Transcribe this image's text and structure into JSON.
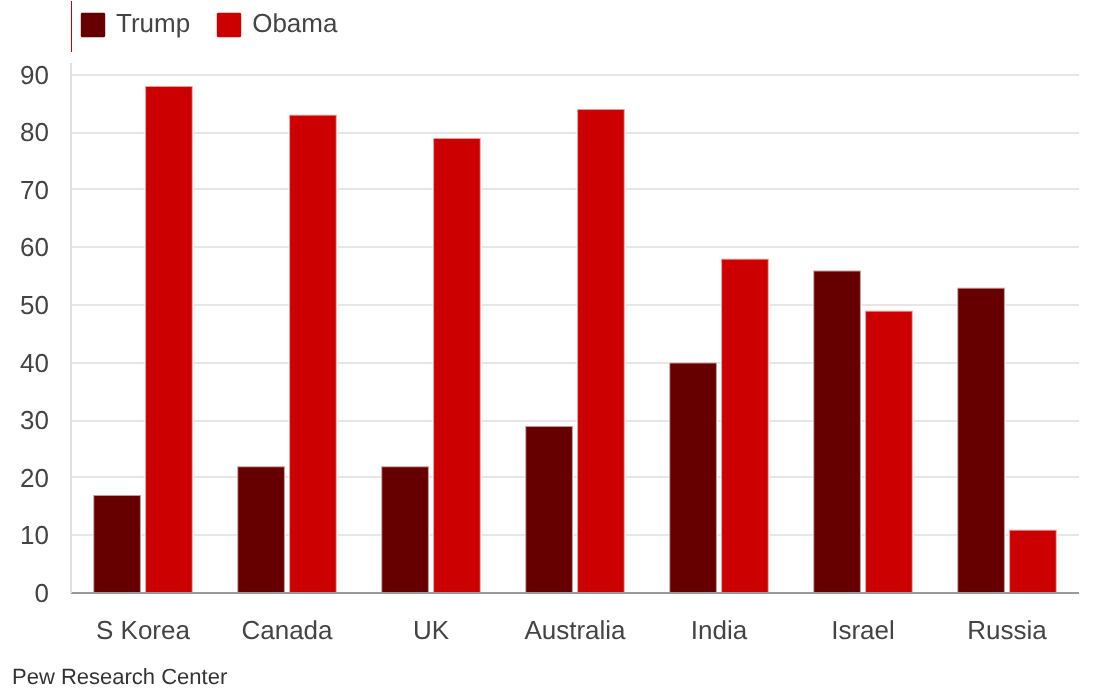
{
  "chart_data": {
    "type": "bar",
    "categories": [
      "S Korea",
      "Canada",
      "UK",
      "Australia",
      "India",
      "Israel",
      "Russia"
    ],
    "series": [
      {
        "name": "Trump",
        "color": "#660000",
        "values": [
          17,
          22,
          22,
          29,
          40,
          56,
          53
        ]
      },
      {
        "name": "Obama",
        "color": "#cc0000",
        "values": [
          88,
          83,
          79,
          84,
          58,
          49,
          11
        ]
      }
    ],
    "ylim": [
      0,
      92
    ],
    "yticks": [
      0,
      10,
      20,
      30,
      40,
      50,
      60,
      70,
      80,
      90
    ],
    "grid": "y",
    "legend": "top left",
    "annotations": [
      "Pew Research Center"
    ]
  }
}
